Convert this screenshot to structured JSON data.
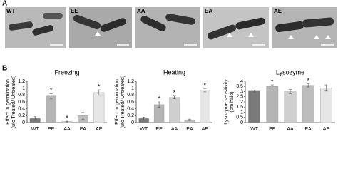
{
  "panels": {
    "panel_a_label": "A",
    "panel_b_label": "B",
    "micrograph_labels": [
      "WT",
      "EE",
      "AA",
      "EA",
      "AE"
    ]
  },
  "chart_data": [
    {
      "type": "bar",
      "title": "Freezing",
      "ylabel": [
        "Effect in germination",
        "(ufc Treated/ Untreated)"
      ],
      "categories": [
        "WT",
        "EE",
        "AA",
        "EA",
        "AE"
      ],
      "values": [
        0.12,
        0.77,
        0.03,
        0.2,
        0.87
      ],
      "errors": [
        0.05,
        0.07,
        0.01,
        0.1,
        0.08
      ],
      "significance": [
        null,
        "*",
        "*",
        null,
        "*"
      ],
      "colors": [
        "#7a7a7a",
        "#b4b4b4",
        "#cfcfcf",
        "#bdbdbd",
        "#e6e6e6"
      ],
      "ylim": [
        0,
        1.2
      ],
      "yticks": [
        0,
        0.2,
        0.4,
        0.6,
        0.8,
        1,
        1.2
      ]
    },
    {
      "type": "bar",
      "title": "Heating",
      "ylabel": [
        "Effect in germination",
        "(ufc Treated/ Untreated)"
      ],
      "categories": [
        "WT",
        "EE",
        "AA",
        "EA",
        "AE"
      ],
      "values": [
        0.12,
        0.52,
        0.73,
        0.08,
        0.94
      ],
      "errors": [
        0.04,
        0.08,
        0.04,
        0.02,
        0.05
      ],
      "significance": [
        null,
        "*",
        "*",
        null,
        "*"
      ],
      "colors": [
        "#7a7a7a",
        "#b4b4b4",
        "#cfcfcf",
        "#bdbdbd",
        "#e6e6e6"
      ],
      "ylim": [
        0,
        1.2
      ],
      "yticks": [
        0,
        0.2,
        0.4,
        0.6,
        0.8,
        1,
        1.2
      ]
    },
    {
      "type": "bar",
      "title": "Lysozyme",
      "ylabel": [
        "Lysozyme sensitivity",
        "(cm halo)"
      ],
      "categories": [
        "WT",
        "EE",
        "AA",
        "EA",
        "AE"
      ],
      "values": [
        3.05,
        3.5,
        3.0,
        3.6,
        3.35
      ],
      "errors": [
        0.1,
        0.15,
        0.2,
        0.15,
        0.3
      ],
      "significance": [
        null,
        "*",
        null,
        "*",
        null
      ],
      "colors": [
        "#7a7a7a",
        "#b4b4b4",
        "#cfcfcf",
        "#bdbdbd",
        "#e6e6e6"
      ],
      "ylim": [
        0,
        4
      ],
      "yticks": [
        0,
        0.5,
        1,
        1.5,
        2,
        2.5,
        3,
        3.5,
        4
      ]
    }
  ]
}
